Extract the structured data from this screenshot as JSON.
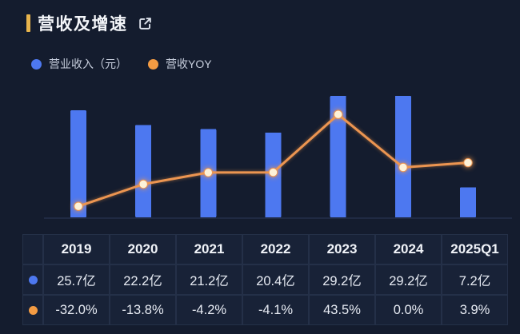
{
  "header": {
    "title": "营收及增速",
    "accent_color": "#e8b44c",
    "icon": "external-link-icon",
    "icon_color": "#dfe4ee"
  },
  "legend": [
    {
      "label": "营业收入（元）",
      "color": "#4d78f0"
    },
    {
      "label": "营收YOY",
      "color": "#f39b43"
    }
  ],
  "chart_data": {
    "type": "bar+line",
    "title": "营收及增速",
    "categories": [
      "2019",
      "2020",
      "2021",
      "2022",
      "2023",
      "2024",
      "2025Q1"
    ],
    "series": [
      {
        "name": "营业收入（元）",
        "type": "bar",
        "unit": "亿",
        "values": [
          25.7,
          22.2,
          21.2,
          20.4,
          29.2,
          29.2,
          7.2
        ],
        "color": "#4d78f0"
      },
      {
        "name": "营收YOY",
        "type": "line",
        "unit": "%",
        "values": [
          -32.0,
          -13.8,
          -4.2,
          -4.1,
          43.5,
          0.0,
          3.9
        ],
        "color": "#ec9551",
        "marker_fill": "#fdf2d8"
      }
    ],
    "layout": {
      "legend_position": "top-left",
      "grid": false,
      "axis_tick_labels_shown": false,
      "x_labels_shown_in_table": true,
      "baseline_color": "#202a43"
    }
  },
  "table": {
    "columns": [
      "2019",
      "2020",
      "2021",
      "2022",
      "2023",
      "2024",
      "2025Q1"
    ],
    "rows": [
      {
        "dot_color": "#4d78f0",
        "cells": [
          "25.7亿",
          "22.2亿",
          "21.2亿",
          "20.4亿",
          "29.2亿",
          "29.2亿",
          "7.2亿"
        ]
      },
      {
        "dot_color": "#f39b43",
        "cells": [
          "-32.0%",
          "-13.8%",
          "-4.2%",
          "-4.1%",
          "43.5%",
          "0.0%",
          "3.9%"
        ]
      }
    ]
  },
  "colors": {
    "background": "#141c2e",
    "bar": "#4d78f0",
    "line": "#ec9551",
    "accent": "#e8b44c"
  }
}
